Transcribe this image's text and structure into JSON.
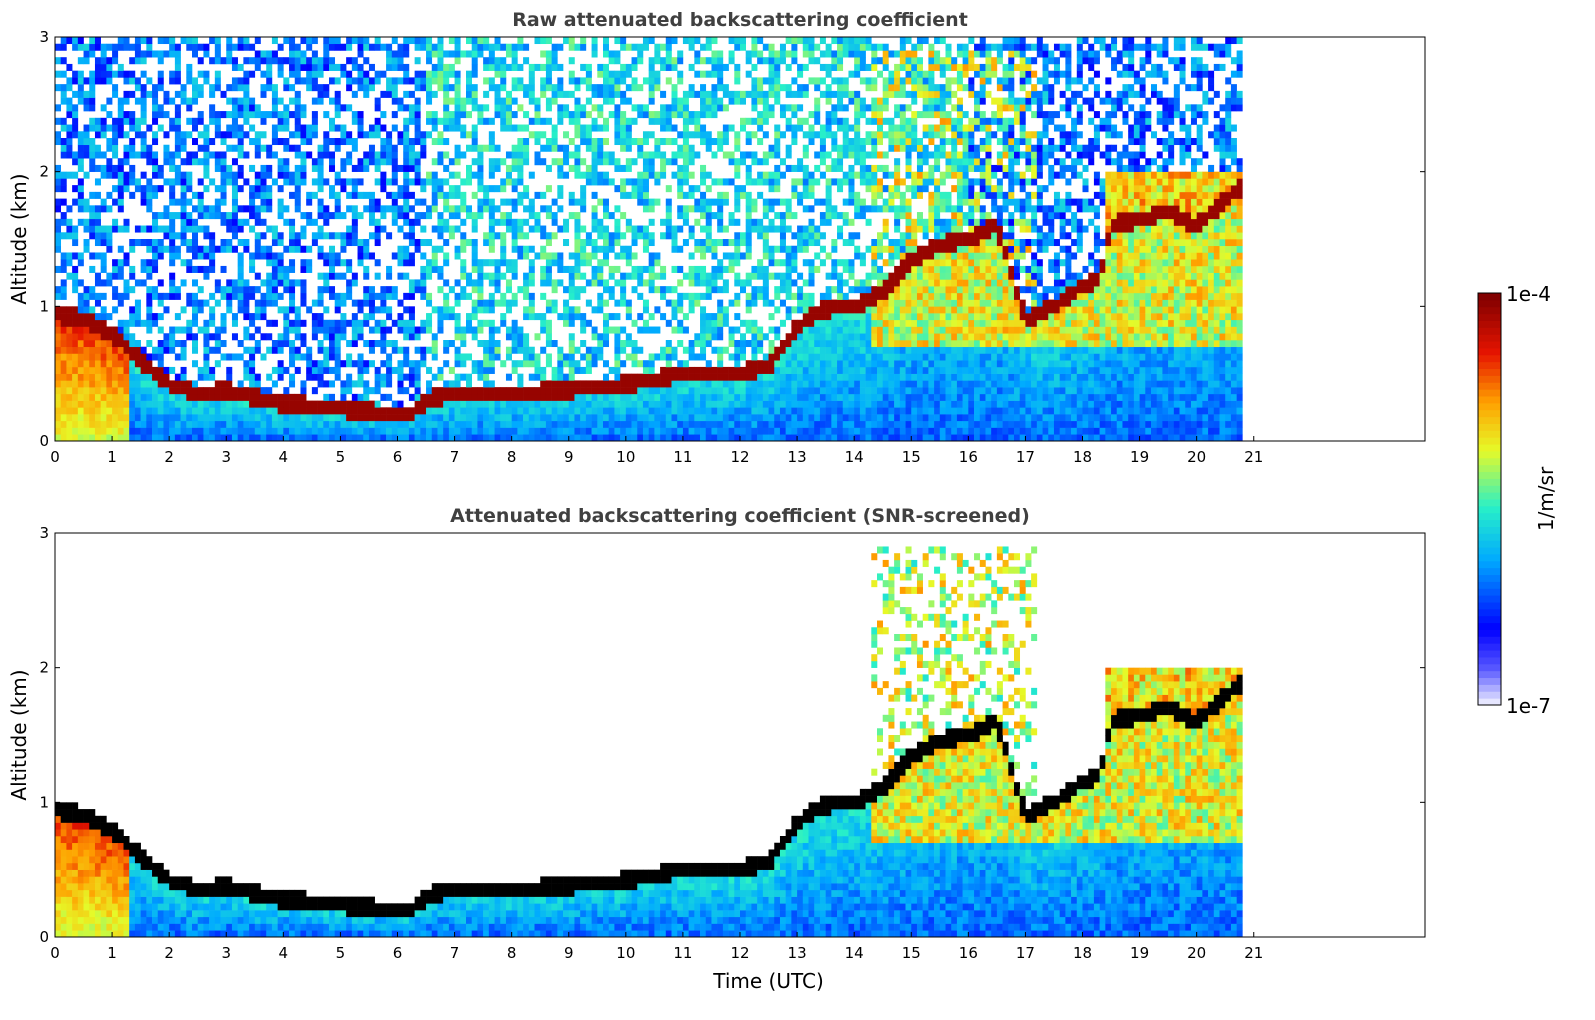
{
  "chart_data": [
    {
      "type": "heatmap",
      "title": "Raw attenuated backscattering coefficient",
      "xlabel": "",
      "ylabel": "Altitude (km)",
      "xlim": [
        0,
        24
      ],
      "ylim": [
        0,
        3
      ],
      "xticks": [
        0,
        1,
        2,
        3,
        4,
        5,
        6,
        7,
        8,
        9,
        10,
        11,
        12,
        13,
        14,
        15,
        16,
        17,
        18,
        19,
        20,
        21
      ],
      "yticks": [
        0,
        1,
        2,
        3
      ],
      "data_end_time": 20.8,
      "screened": false,
      "features": {
        "boundary_layer_top_km": [
          [
            0,
            0.95
          ],
          [
            0.5,
            0.9
          ],
          [
            1,
            0.8
          ],
          [
            1.5,
            0.6
          ],
          [
            2,
            0.42
          ],
          [
            2.5,
            0.35
          ],
          [
            3,
            0.38
          ],
          [
            3.5,
            0.32
          ],
          [
            4,
            0.28
          ],
          [
            5,
            0.24
          ],
          [
            6,
            0.2
          ],
          [
            6.2,
            0.19
          ],
          [
            6.6,
            0.32
          ],
          [
            7,
            0.35
          ],
          [
            8,
            0.35
          ],
          [
            9,
            0.38
          ],
          [
            10,
            0.42
          ],
          [
            11,
            0.5
          ],
          [
            12,
            0.5
          ],
          [
            12.5,
            0.55
          ],
          [
            13,
            0.85
          ],
          [
            13.5,
            0.98
          ],
          [
            14,
            1.0
          ],
          [
            14.5,
            1.1
          ],
          [
            15,
            1.35
          ],
          [
            15.5,
            1.45
          ],
          [
            16,
            1.5
          ],
          [
            16.5,
            1.6
          ],
          [
            17,
            0.9
          ],
          [
            17.5,
            1.0
          ],
          [
            18,
            1.15
          ],
          [
            18.3,
            1.2
          ],
          [
            18.5,
            1.6
          ],
          [
            19,
            1.65
          ],
          [
            19.5,
            1.7
          ],
          [
            20,
            1.6
          ],
          [
            20.8,
            1.9
          ]
        ],
        "noise_level": "high"
      }
    },
    {
      "type": "heatmap",
      "title": "Attenuated backscattering coefficient (SNR-screened)",
      "xlabel": "Time (UTC)",
      "ylabel": "Altitude (km)",
      "xlim": [
        0,
        24
      ],
      "ylim": [
        0,
        3
      ],
      "xticks": [
        0,
        1,
        2,
        3,
        4,
        5,
        6,
        7,
        8,
        9,
        10,
        11,
        12,
        13,
        14,
        15,
        16,
        17,
        18,
        19,
        20,
        21
      ],
      "yticks": [
        0,
        1,
        2,
        3
      ],
      "data_end_time": 20.8,
      "screened": true,
      "features": {
        "boundary_layer_top_km": [
          [
            0,
            0.95
          ],
          [
            0.5,
            0.9
          ],
          [
            1,
            0.8
          ],
          [
            1.5,
            0.6
          ],
          [
            2,
            0.42
          ],
          [
            2.5,
            0.35
          ],
          [
            3,
            0.38
          ],
          [
            3.5,
            0.32
          ],
          [
            4,
            0.28
          ],
          [
            5,
            0.24
          ],
          [
            6,
            0.2
          ],
          [
            6.2,
            0.19
          ],
          [
            6.6,
            0.32
          ],
          [
            7,
            0.35
          ],
          [
            8,
            0.35
          ],
          [
            9,
            0.38
          ],
          [
            10,
            0.42
          ],
          [
            11,
            0.5
          ],
          [
            12,
            0.5
          ],
          [
            12.5,
            0.55
          ],
          [
            13,
            0.85
          ],
          [
            13.5,
            0.98
          ],
          [
            14,
            1.0
          ],
          [
            14.5,
            1.1
          ],
          [
            15,
            1.35
          ],
          [
            15.5,
            1.45
          ],
          [
            16,
            1.5
          ],
          [
            16.5,
            1.6
          ],
          [
            17,
            0.9
          ],
          [
            17.5,
            1.0
          ],
          [
            18,
            1.15
          ],
          [
            18.3,
            1.2
          ],
          [
            18.5,
            1.6
          ],
          [
            19,
            1.65
          ],
          [
            19.5,
            1.7
          ],
          [
            20,
            1.6
          ],
          [
            20.8,
            1.9
          ]
        ],
        "noise_level": "screened"
      }
    }
  ],
  "colorbar": {
    "label": "1/m/sr",
    "min_label": "1e-7",
    "max_label": "1e-4",
    "colormap": [
      "#e8e8ff",
      "#0000ff",
      "#00b0ff",
      "#40ffc0",
      "#ffff00",
      "#ff8000",
      "#e00000",
      "#800000"
    ]
  }
}
